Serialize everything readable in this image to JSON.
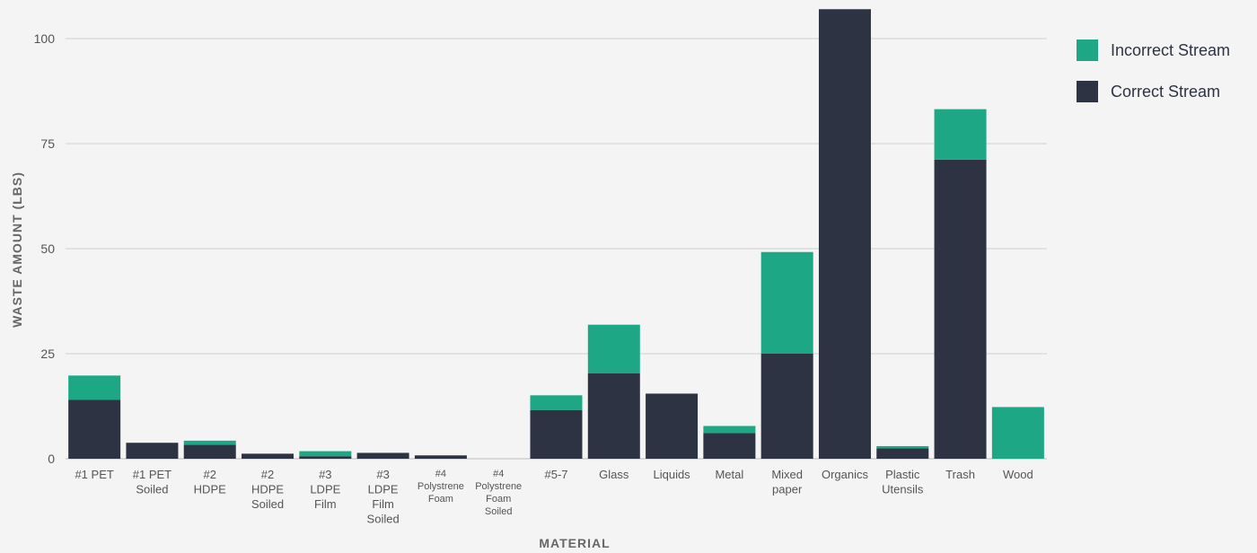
{
  "chart_data": {
    "type": "bar",
    "stacked": true,
    "categories": [
      [
        "#1 PET"
      ],
      [
        "#1 PET",
        "Soiled"
      ],
      [
        "#2",
        "HDPE"
      ],
      [
        "#2",
        "HDPE",
        "Soiled"
      ],
      [
        "#3",
        "LDPE",
        "Film"
      ],
      [
        "#3",
        "LDPE",
        "Film",
        "Soiled"
      ],
      [
        "#4",
        "Polystrene",
        "Foam"
      ],
      [
        "#4",
        "Polystrene",
        "Foam",
        "Soiled"
      ],
      [
        "#5-7"
      ],
      [
        "Glass"
      ],
      [
        "Liquids"
      ],
      [
        "Metal"
      ],
      [
        "Mixed",
        "paper"
      ],
      [
        "Organics"
      ],
      [
        "Plastic",
        "Utensils"
      ],
      [
        "Trash"
      ],
      [
        "Wood"
      ]
    ],
    "series": [
      {
        "name": "Correct Stream",
        "color": "#2d3343",
        "values": [
          14,
          3.8,
          3.3,
          1.2,
          0.6,
          1.4,
          0.8,
          0,
          11.6,
          20.3,
          15.5,
          6.1,
          25,
          107,
          2.5,
          71.2,
          0
        ]
      },
      {
        "name": "Incorrect Stream",
        "color": "#1da784",
        "values": [
          5.8,
          0,
          1,
          0,
          1.2,
          0,
          0,
          0,
          3.5,
          11.6,
          0,
          1.7,
          24.2,
          0,
          0.5,
          12,
          12.3
        ]
      }
    ],
    "legend_order": [
      "Incorrect Stream",
      "Correct Stream"
    ],
    "legend_position": "top-right",
    "ylabel": "WASTE AMOUNT (LBS)",
    "xlabel": "MATERIAL",
    "yticks": [
      0,
      25,
      50,
      75,
      100
    ],
    "ylim": [
      0,
      107
    ],
    "grid": true
  }
}
